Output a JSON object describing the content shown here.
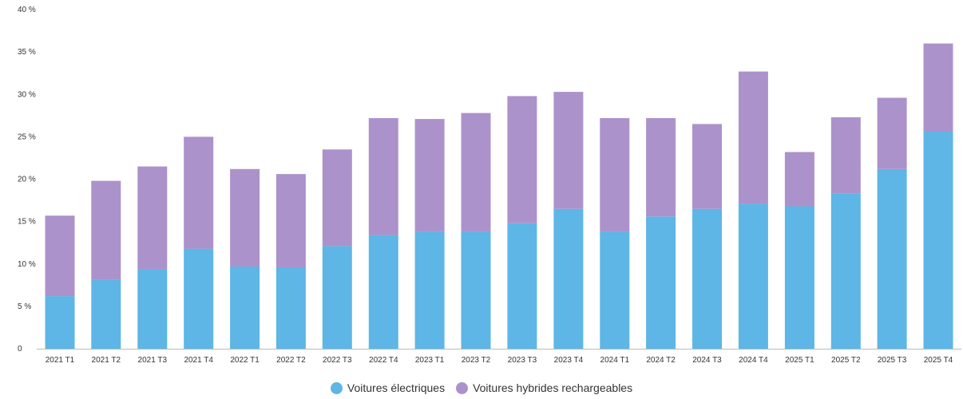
{
  "chart_data": {
    "type": "bar",
    "stacked": true,
    "categories": [
      "2021 T1",
      "2021 T2",
      "2021 T3",
      "2021 T4",
      "2022 T1",
      "2022 T2",
      "2022 T3",
      "2022 T4",
      "2023 T1",
      "2023 T2",
      "2023 T3",
      "2023 T4",
      "2024 T1",
      "2024 T2",
      "2024 T3",
      "2024 T4",
      "2025 T1",
      "2025 T2",
      "2025 T3",
      "2025 T4"
    ],
    "series": [
      {
        "name": "Voitures électriques",
        "color": "#5DB6E5",
        "values": [
          6.2,
          8.1,
          9.4,
          11.8,
          9.7,
          9.6,
          12.1,
          13.4,
          13.8,
          13.8,
          14.8,
          16.5,
          13.8,
          15.6,
          16.5,
          17.1,
          16.8,
          18.3,
          21.2,
          25.6
        ]
      },
      {
        "name": "Voitures hybrides rechargeables",
        "color": "#AC92CB",
        "values": [
          9.5,
          11.7,
          12.1,
          13.2,
          11.5,
          11.0,
          11.4,
          13.8,
          13.3,
          14.0,
          15.0,
          13.8,
          13.4,
          11.6,
          10.0,
          15.6,
          6.4,
          9.0,
          8.4,
          10.4
        ]
      }
    ],
    "ylim": [
      0,
      40
    ],
    "yticks": [
      {
        "value": 0,
        "label": "0"
      },
      {
        "value": 5,
        "label": "5 %"
      },
      {
        "value": 10,
        "label": "10 %"
      },
      {
        "value": 15,
        "label": "15 %"
      },
      {
        "value": 20,
        "label": "20 %"
      },
      {
        "value": 25,
        "label": "25 %"
      },
      {
        "value": 30,
        "label": "30 %"
      },
      {
        "value": 35,
        "label": "35 %"
      },
      {
        "value": 40,
        "label": "40 %"
      }
    ],
    "grid": false,
    "legend_position": "bottom-center"
  }
}
